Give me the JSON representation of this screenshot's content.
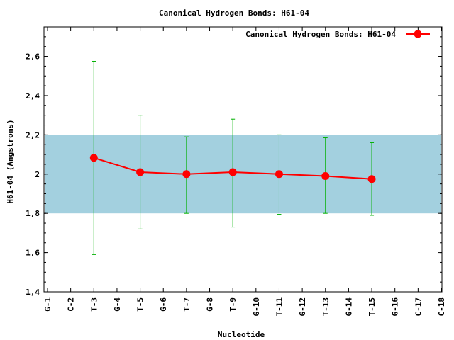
{
  "chart_data": {
    "type": "line",
    "title": "Canonical Hydrogen Bonds: H61-04",
    "xlabel": "Nucleotide",
    "ylabel": "H61-04 (Angstroms)",
    "ylim": [
      1.4,
      2.75
    ],
    "yticks": [
      "1,4",
      "1,6",
      "1,8",
      "2",
      "2,2",
      "2,4",
      "2,6"
    ],
    "ytick_values": [
      1.4,
      1.6,
      1.8,
      2.0,
      2.2,
      2.4,
      2.6
    ],
    "categories": [
      "G-1",
      "C-2",
      "T-3",
      "G-4",
      "T-5",
      "G-6",
      "T-7",
      "G-8",
      "T-9",
      "G-10",
      "T-11",
      "G-12",
      "T-13",
      "G-14",
      "T-15",
      "G-16",
      "C-17",
      "C-18"
    ],
    "reference_band": {
      "low": 1.8,
      "high": 2.2,
      "color": "#a3d0df"
    },
    "legend": {
      "position": "top-right"
    },
    "grid": false,
    "series": [
      {
        "name": "Canonical Hydrogen Bonds: H61-04",
        "color": "#ff0000",
        "errorbar_color": "#00b000",
        "points": [
          {
            "x": "T-3",
            "y": 2.083,
            "low": 1.59,
            "high": 2.575
          },
          {
            "x": "T-5",
            "y": 2.01,
            "low": 1.72,
            "high": 2.3
          },
          {
            "x": "T-7",
            "y": 2.0,
            "low": 1.8,
            "high": 2.19
          },
          {
            "x": "T-9",
            "y": 2.01,
            "low": 1.73,
            "high": 2.28
          },
          {
            "x": "T-11",
            "y": 2.0,
            "low": 1.795,
            "high": 2.2
          },
          {
            "x": "T-13",
            "y": 1.99,
            "low": 1.8,
            "high": 2.185
          },
          {
            "x": "T-15",
            "y": 1.975,
            "low": 1.79,
            "high": 2.16
          }
        ]
      }
    ]
  }
}
